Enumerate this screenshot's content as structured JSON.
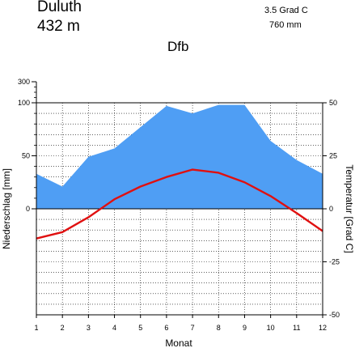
{
  "header": {
    "station": "Duluth",
    "elevation": "432  m",
    "mean_temperature": "3.5 Grad C",
    "annual_precipitation": "760 mm",
    "climate_class": "Dfb"
  },
  "chart_data": {
    "type": "line",
    "title": "Dfb",
    "xlabel": "Monat",
    "ylabel_left": "Niederschlag [mm]",
    "ylabel_right": "Temperatur [Grad C]",
    "x": [
      1,
      2,
      3,
      4,
      5,
      6,
      7,
      8,
      9,
      10,
      11,
      12
    ],
    "x_ticks": [
      "1",
      "2",
      "3",
      "4",
      "5",
      "6",
      "7",
      "8",
      "9",
      "10",
      "11",
      "12"
    ],
    "y_left_ticks": [
      "0",
      "50",
      "100",
      "300"
    ],
    "y_right_ticks": [
      "-50",
      "-25",
      "0",
      "25",
      "50"
    ],
    "y_left_lim": [
      0,
      300
    ],
    "y_right_lim": [
      -50,
      50
    ],
    "grid": true,
    "series": [
      {
        "name": "Niederschlag",
        "kind": "area",
        "axis": "left",
        "color": "#4f9ef4",
        "values": [
          33,
          21,
          49,
          57,
          77,
          97,
          90,
          98,
          98,
          64,
          46,
          33
        ]
      },
      {
        "name": "Temperatur",
        "kind": "line",
        "axis": "right",
        "color": "#e01010",
        "values": [
          -14,
          -11,
          -4,
          4.5,
          10.5,
          15,
          18.5,
          17,
          12.5,
          6,
          -2,
          -10.5
        ]
      }
    ]
  }
}
